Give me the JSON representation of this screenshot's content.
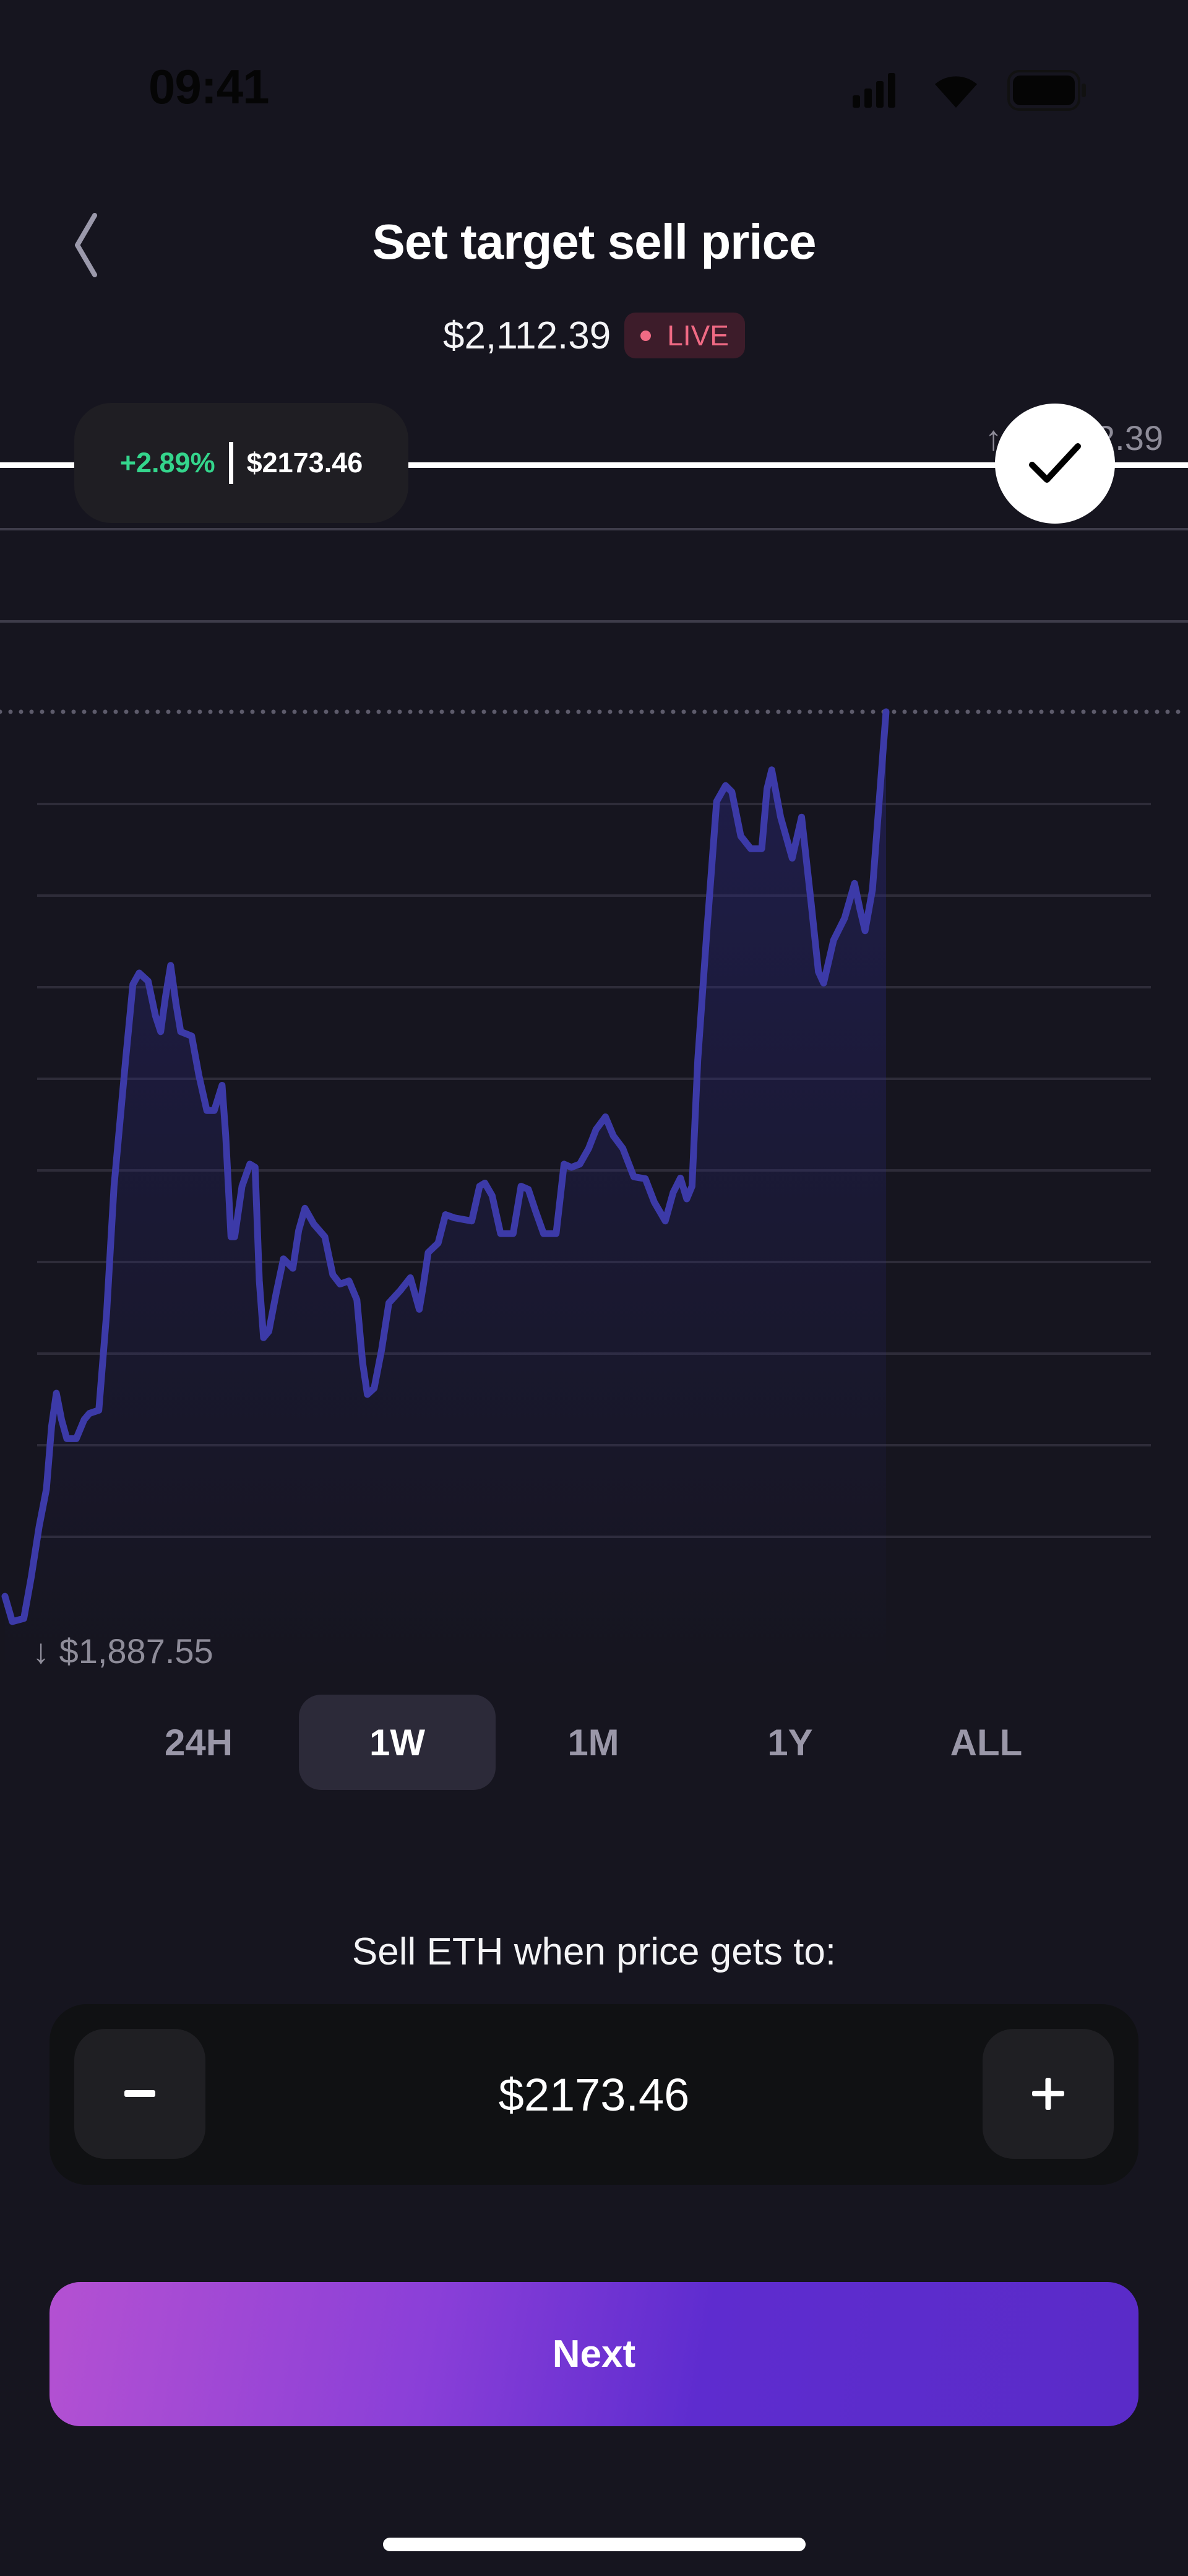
{
  "status_bar": {
    "time": "09:41",
    "icons": [
      "signal-icon",
      "wifi-icon",
      "battery-icon"
    ]
  },
  "header": {
    "title": "Set target sell price",
    "back_icon": "chevron-left-icon"
  },
  "live_price": {
    "value": "$2,112.39",
    "badge": "LIVE",
    "badge_color": "#f06a84"
  },
  "target": {
    "change_pct": "+2.89%",
    "price": "$2173.46",
    "confirm_icon": "checkmark-icon",
    "change_color": "#34d58c"
  },
  "chart_labels": {
    "high": "$2,112.39",
    "low": "$1,887.55"
  },
  "range_tabs": [
    {
      "label": "24H",
      "selected": false
    },
    {
      "label": "1W",
      "selected": true
    },
    {
      "label": "1M",
      "selected": false
    },
    {
      "label": "1Y",
      "selected": false
    },
    {
      "label": "ALL",
      "selected": false
    }
  ],
  "sell_prompt": "Sell ETH when price gets to:",
  "stepper": {
    "value": "$2173.46",
    "minus_icon": "minus-icon",
    "plus_icon": "plus-icon"
  },
  "next_button": "Next",
  "chart_data": {
    "type": "line",
    "line_color": "#3c3aa8",
    "ylim": [
      1887.55,
      2112.39
    ],
    "target_price": 2173.46,
    "x_unit": "hours",
    "xlim": [
      0,
      168
    ],
    "x": [
      0,
      1.4,
      3.6,
      5.0,
      6.5,
      7.9,
      8.9,
      9.8,
      10.8,
      11.8,
      13.6,
      15.1,
      16.1,
      17.9,
      19.4,
      20.8,
      23.0,
      24.4,
      25.6,
      27.3,
      28.7,
      29.7,
      30.6,
      31.6,
      32.6,
      33.5,
      35.6,
      37.0,
      38.5,
      39.9,
      41.4,
      42.1,
      43.1,
      43.8,
      45.2,
      46.7,
      47.7,
      48.5,
      49.3,
      50.3,
      51.7,
      53.1,
      54.9,
      56.0,
      57.2,
      58.9,
      61.0,
      62.5,
      63.9,
      65.6,
      67.1,
      68.2,
      69.1,
      70.4,
      71.8,
      73.2,
      75.4,
      77.3,
      79.0,
      79.7,
      80.7,
      82.6,
      84.0,
      85.7,
      89.0,
      90.5,
      91.5,
      92.9,
      94.5,
      96.9,
      98.4,
      99.8,
      101.2,
      102.7,
      105.1,
      106.6,
      108.0,
      109.6,
      111.3,
      112.7,
      114.5,
      116.0,
      117.8,
      119.9,
      122.1,
      123.8,
      125.9,
      127.4,
      128.8,
      130.0,
      131.0,
      132.1,
      133.8,
      135.7,
      137.4,
      138.6,
      140.3,
      142.2,
      144.3,
      145.3,
      146.2,
      147.9,
      150.1,
      151.9,
      153.7,
      155.1,
      156.1,
      158.0,
      160.1,
      162.0,
      163.0,
      164.0,
      165.4,
      166.6,
      168.0
    ],
    "y": [
      1893.79,
      1887.55,
      1888.33,
      1898.46,
      1910.94,
      1920.29,
      1935.89,
      1943.99,
      1937.44,
      1932.77,
      1932.77,
      1937.44,
      1939.0,
      1939.78,
      1963.95,
      1995.13,
      2026.32,
      2045.03,
      2047.84,
      2045.81,
      2037.23,
      2033.34,
      2041.91,
      2049.71,
      2040.35,
      2033.34,
      2032.24,
      2022.42,
      2013.85,
      2013.85,
      2020.08,
      2007.61,
      1982.66,
      1982.66,
      1995.13,
      2000.59,
      1999.81,
      1971.75,
      1957.71,
      1959.27,
      1968.63,
      1977.2,
      1974.87,
      1984.22,
      1989.68,
      1985.78,
      1982.66,
      1973.31,
      1970.97,
      1971.75,
      1967.07,
      1951.48,
      1943.68,
      1945.24,
      1954.6,
      1966.29,
      1969.41,
      1972.53,
      1964.73,
      1970.19,
      1978.76,
      1981.1,
      1988.12,
      1987.34,
      1986.56,
      1995.13,
      1995.91,
      1992.8,
      1983.44,
      1983.44,
      1995.13,
      1994.36,
      1988.9,
      1983.44,
      1983.44,
      2000.59,
      1999.81,
      2000.59,
      2004.49,
      2009.17,
      2012.29,
      2007.61,
      2004.49,
      1997.47,
      1997.01,
      1991.24,
      1986.56,
      1993.58,
      1997.16,
      1992.02,
      1995.13,
      2026.32,
      2057.5,
      2090.25,
      2094.14,
      2092.58,
      2081.67,
      2078.55,
      2078.55,
      2093.36,
      2098.04,
      2086.35,
      2076.21,
      2086.35,
      2065.3,
      2048.15,
      2045.34,
      2055.94,
      2061.4,
      2069.98,
      2063.74,
      2058.28,
      2068.42,
      2088.69,
      2112.39
    ]
  }
}
